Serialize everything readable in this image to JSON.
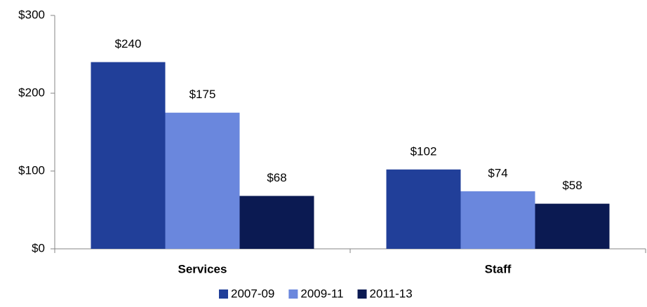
{
  "chart_data": {
    "type": "bar",
    "categories": [
      "Services",
      "Staff"
    ],
    "series": [
      {
        "name": "2007-09",
        "color": "#213f99",
        "values": [
          240,
          102
        ],
        "value_labels": [
          "$240",
          "$102"
        ]
      },
      {
        "name": "2009-11",
        "color": "#6a87dd",
        "values": [
          175,
          74
        ],
        "value_labels": [
          "$175",
          "$74"
        ]
      },
      {
        "name": "2011-13",
        "color": "#0b1a52",
        "values": [
          68,
          58
        ],
        "value_labels": [
          "$68",
          "$58"
        ]
      }
    ],
    "ylim": [
      0,
      300
    ],
    "yticks": [
      {
        "value": 0,
        "label": "$0"
      },
      {
        "value": 100,
        "label": "$100"
      },
      {
        "value": 200,
        "label": "$200"
      },
      {
        "value": 300,
        "label": "$300"
      }
    ],
    "grid": false,
    "legend": "bottom"
  }
}
